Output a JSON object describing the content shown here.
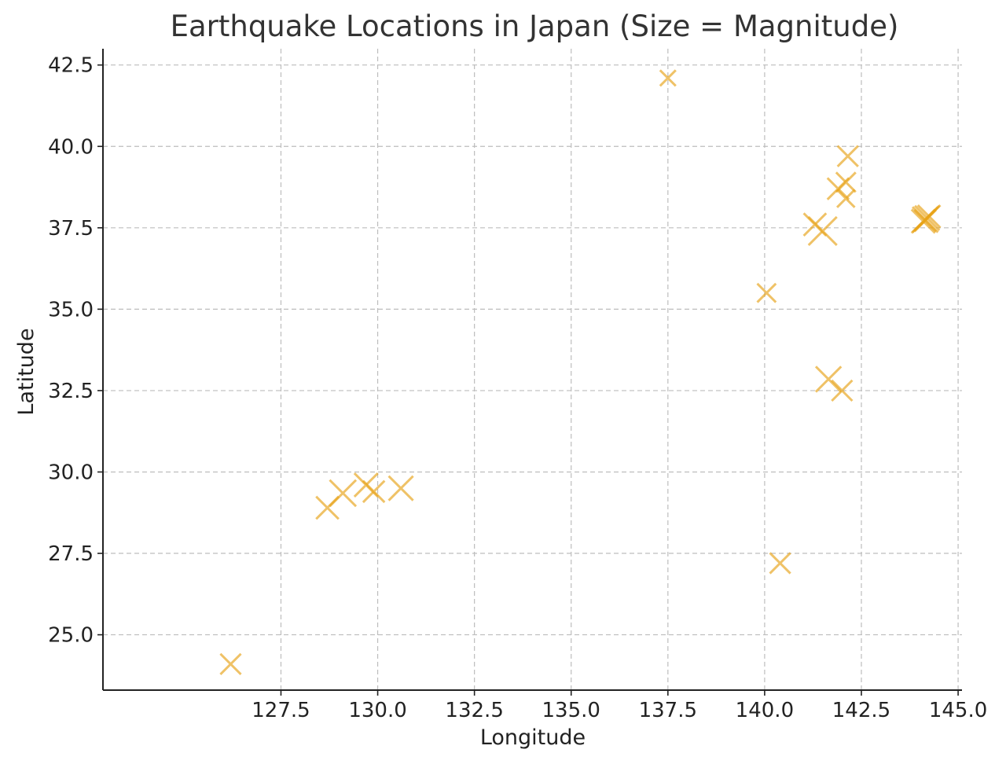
{
  "chart_data": {
    "type": "scatter",
    "title": "Earthquake Locations in Japan (Size = Magnitude)",
    "xlabel": "Longitude",
    "ylabel": "Latitude",
    "xlim": [
      122.9,
      145.1
    ],
    "ylim": [
      23.3,
      43.0
    ],
    "xticks": [
      127.5,
      130.0,
      132.5,
      135.0,
      137.5,
      140.0,
      142.5,
      145.0
    ],
    "yticks": [
      25.0,
      27.5,
      30.0,
      32.5,
      35.0,
      37.5,
      40.0,
      42.5
    ],
    "xtick_labels": [
      "127.5",
      "130.0",
      "132.5",
      "135.0",
      "137.5",
      "140.0",
      "142.5",
      "145.0"
    ],
    "ytick_labels": [
      "25.0",
      "27.5",
      "30.0",
      "32.5",
      "35.0",
      "37.5",
      "40.0",
      "42.5"
    ],
    "grid": true,
    "marker": "x",
    "marker_color": "#e8a317",
    "marker_opacity": 0.65,
    "points": [
      {
        "x": 126.2,
        "y": 24.1,
        "magnitude": 5.5
      },
      {
        "x": 128.7,
        "y": 28.9,
        "magnitude": 5.7
      },
      {
        "x": 129.1,
        "y": 29.35,
        "magnitude": 6.1
      },
      {
        "x": 129.7,
        "y": 29.6,
        "magnitude": 5.8
      },
      {
        "x": 129.9,
        "y": 29.4,
        "magnitude": 5.6
      },
      {
        "x": 130.6,
        "y": 29.5,
        "magnitude": 5.9
      },
      {
        "x": 137.5,
        "y": 42.1,
        "magnitude": 5.0
      },
      {
        "x": 140.05,
        "y": 35.5,
        "magnitude": 5.3
      },
      {
        "x": 140.4,
        "y": 27.2,
        "magnitude": 5.5
      },
      {
        "x": 141.3,
        "y": 37.6,
        "magnitude": 5.7
      },
      {
        "x": 141.5,
        "y": 37.4,
        "magnitude": 6.3
      },
      {
        "x": 141.65,
        "y": 32.85,
        "magnitude": 6.0
      },
      {
        "x": 142.0,
        "y": 32.5,
        "magnitude": 5.5
      },
      {
        "x": 141.9,
        "y": 38.7,
        "magnitude": 5.6
      },
      {
        "x": 142.1,
        "y": 38.9,
        "magnitude": 5.4
      },
      {
        "x": 142.1,
        "y": 38.4,
        "magnitude": 5.2
      },
      {
        "x": 142.15,
        "y": 39.7,
        "magnitude": 5.5
      },
      {
        "x": 144.15,
        "y": 37.75,
        "magnitude": 6.0
      },
      {
        "x": 144.2,
        "y": 37.8,
        "magnitude": 5.9
      },
      {
        "x": 144.1,
        "y": 37.7,
        "magnitude": 5.8
      },
      {
        "x": 144.25,
        "y": 37.85,
        "magnitude": 5.7
      },
      {
        "x": 144.15,
        "y": 37.72,
        "magnitude": 5.6
      }
    ]
  }
}
